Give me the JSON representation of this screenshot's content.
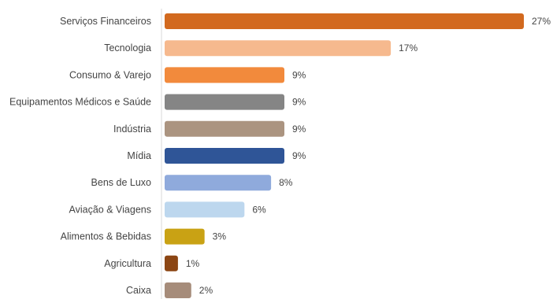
{
  "chart_data": {
    "type": "bar",
    "orientation": "horizontal",
    "categories": [
      "Serviços Financeiros",
      "Tecnologia",
      "Consumo & Varejo",
      "Equipamentos Médicos e Saúde",
      "Indústria",
      "Mídia",
      "Bens de Luxo",
      "Aviação & Viagens",
      "Alimentos & Bebidas",
      "Agricultura",
      "Caixa"
    ],
    "values": [
      27,
      17,
      9,
      9,
      9,
      9,
      8,
      6,
      3,
      1,
      2
    ],
    "value_labels": [
      "27%",
      "17%",
      "9%",
      "9%",
      "9%",
      "9%",
      "8%",
      "6%",
      "3%",
      "1%",
      "2%"
    ],
    "unit": "%",
    "colors": [
      "#D2691E",
      "#F6B98E",
      "#F28A3C",
      "#858585",
      "#AB9480",
      "#2F5597",
      "#8FAADC",
      "#BDD7EE",
      "#C9A214",
      "#8B4513",
      "#A68C7A"
    ],
    "xlim": [
      0,
      27
    ],
    "grid": false,
    "legend": "none"
  }
}
